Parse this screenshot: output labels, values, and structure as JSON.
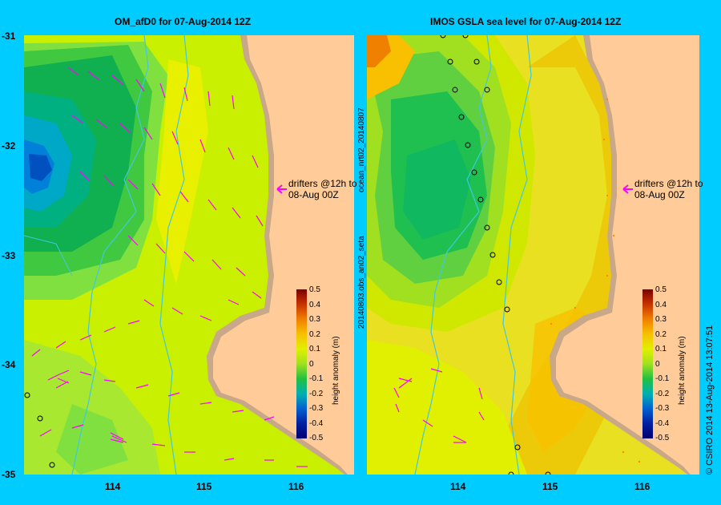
{
  "left_panel": {
    "title": "OM_afD0 for 07-Aug-2014 12Z",
    "x_ticks": [
      "114",
      "115",
      "116"
    ],
    "y_ticks": [
      "-31",
      "-32",
      "-33",
      "-34",
      "-35"
    ],
    "annotation": [
      "drifters @12h to",
      "08-Aug 00Z"
    ]
  },
  "right_panel": {
    "title": "IMOS GSLA sea level  for 07-Aug-2014 12Z",
    "x_ticks": [
      "114",
      "115",
      "116"
    ],
    "side_label_top": "ocean_nrt02_20140807",
    "side_label_bottom": "20140803.obs_an02_seta",
    "annotation": [
      "drifters @12h to",
      "08-Aug 00Z"
    ]
  },
  "colorbar": {
    "label": "height anomaly (m)",
    "ticks": [
      "0.5",
      "0.4",
      "0.3",
      "0.2",
      "0.1",
      "0",
      "-0.1",
      "-0.2",
      "-0.3",
      "-0.4",
      "-0.5"
    ],
    "colors": [
      "#7a0000",
      "#c83200",
      "#f08000",
      "#f8c000",
      "#e0f000",
      "#a0e020",
      "#20c040",
      "#00b0b0",
      "#0060d0",
      "#0020a0",
      "#000070"
    ]
  },
  "footer": {
    "credit": "© CSIRO 2014   13-Aug-2014 13:07:51"
  },
  "colors": {
    "background": "#00ccff",
    "land": "#ffcc99",
    "coast_strip": "#c8a888",
    "vector": "#ff00ff",
    "current_path": "#40c8e0"
  }
}
